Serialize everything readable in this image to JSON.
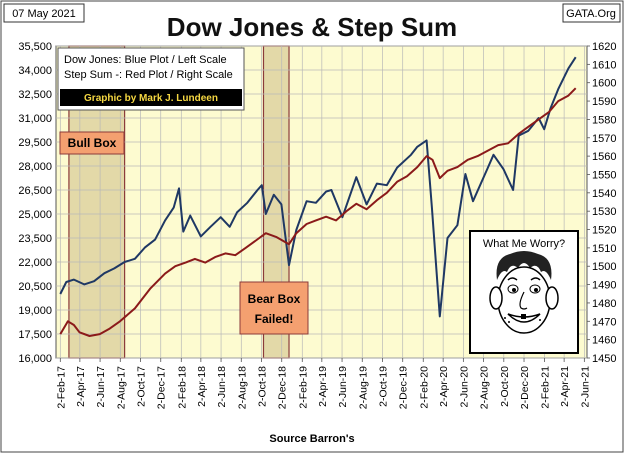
{
  "header": {
    "date": "07 May 2021",
    "title": "Dow Jones & Step Sum",
    "site": "GATA.Org"
  },
  "legend": {
    "line1": "Dow Jones: Blue Plot / Left Scale",
    "line2": "Step Sum -: Red Plot / Right Scale",
    "credit": "Graphic by Mark J. Lundeen"
  },
  "annotations": {
    "bull_box": "Bull Box",
    "bear_box_line1": "Bear Box",
    "bear_box_line2": "Failed!",
    "what_me_worry": "What Me Worry?"
  },
  "footer": {
    "source": "Source Barron's"
  },
  "colors": {
    "dow": "#1f3864",
    "stepsum": "#8b1a1a",
    "plot_bg": "#fdfbd0",
    "box_fill": "#e3d9a8",
    "box_border": "#8b3a3a",
    "label_fill": "#f4a070",
    "credit_bg": "#000000",
    "credit_text": "#f5d742"
  },
  "chart_data": {
    "type": "line",
    "x_ticks": [
      "2-Feb-17",
      "2-Apr-17",
      "2-Jun-17",
      "2-Aug-17",
      "2-Oct-17",
      "2-Dec-17",
      "2-Feb-18",
      "2-Apr-18",
      "2-Jun-18",
      "2-Aug-18",
      "2-Oct-18",
      "2-Dec-18",
      "2-Feb-19",
      "2-Apr-19",
      "2-Jun-19",
      "2-Aug-19",
      "2-Oct-19",
      "2-Dec-19",
      "2-Feb-20",
      "2-Apr-20",
      "2-Jun-20",
      "2-Aug-20",
      "2-Oct-20",
      "2-Dec-20",
      "2-Feb-21",
      "2-Apr-21",
      "2-Jun-21"
    ],
    "y_left": {
      "min": 16000,
      "max": 35500,
      "step": 1500,
      "ticks": [
        "16,000",
        "17,500",
        "19,000",
        "20,500",
        "22,000",
        "23,500",
        "25,000",
        "26,500",
        "28,000",
        "29,500",
        "31,000",
        "32,500",
        "34,000",
        "35,500"
      ]
    },
    "y_right": {
      "min": 1450,
      "max": 1620,
      "step": 10,
      "ticks": [
        "1450",
        "1460",
        "1470",
        "1480",
        "1490",
        "1500",
        "1510",
        "1520",
        "1530",
        "1540",
        "1550",
        "1560",
        "1570",
        "1580",
        "1590",
        "1600",
        "1610",
        "1620"
      ]
    },
    "shaded_regions": [
      {
        "label": "Bull Box",
        "start": "2017-02-28",
        "end": "2017-08-15"
      },
      {
        "label": "Bear Box",
        "start": "2018-10-08",
        "end": "2018-12-24"
      }
    ],
    "series": [
      {
        "name": "Dow Jones",
        "axis": "left",
        "color": "#1f3864",
        "points": [
          [
            "2017-02-02",
            20000
          ],
          [
            "2017-02-20",
            20750
          ],
          [
            "2017-03-15",
            20900
          ],
          [
            "2017-04-15",
            20600
          ],
          [
            "2017-05-15",
            20800
          ],
          [
            "2017-06-15",
            21300
          ],
          [
            "2017-07-15",
            21600
          ],
          [
            "2017-08-15",
            22000
          ],
          [
            "2017-09-15",
            22200
          ],
          [
            "2017-10-15",
            22900
          ],
          [
            "2017-11-15",
            23400
          ],
          [
            "2017-12-15",
            24600
          ],
          [
            "2018-01-10",
            25400
          ],
          [
            "2018-01-26",
            26600
          ],
          [
            "2018-02-08",
            23900
          ],
          [
            "2018-03-01",
            24900
          ],
          [
            "2018-04-02",
            23600
          ],
          [
            "2018-05-01",
            24200
          ],
          [
            "2018-06-01",
            24800
          ],
          [
            "2018-06-28",
            24200
          ],
          [
            "2018-07-20",
            25100
          ],
          [
            "2018-08-20",
            25700
          ],
          [
            "2018-09-20",
            26500
          ],
          [
            "2018-10-03",
            26800
          ],
          [
            "2018-10-15",
            25000
          ],
          [
            "2018-11-08",
            26200
          ],
          [
            "2018-12-01",
            25600
          ],
          [
            "2018-12-24",
            21800
          ],
          [
            "2019-01-15",
            24000
          ],
          [
            "2019-02-15",
            25800
          ],
          [
            "2019-03-15",
            25700
          ],
          [
            "2019-04-15",
            26400
          ],
          [
            "2019-05-01",
            26500
          ],
          [
            "2019-06-03",
            24800
          ],
          [
            "2019-07-15",
            27300
          ],
          [
            "2019-08-15",
            25600
          ],
          [
            "2019-09-15",
            26900
          ],
          [
            "2019-10-15",
            26800
          ],
          [
            "2019-11-15",
            27900
          ],
          [
            "2019-12-27",
            28700
          ],
          [
            "2020-01-15",
            29200
          ],
          [
            "2020-02-12",
            29600
          ],
          [
            "2020-02-28",
            25400
          ],
          [
            "2020-03-23",
            18600
          ],
          [
            "2020-04-15",
            23500
          ],
          [
            "2020-05-15",
            24300
          ],
          [
            "2020-06-08",
            27500
          ],
          [
            "2020-07-01",
            25800
          ],
          [
            "2020-08-15",
            27900
          ],
          [
            "2020-09-01",
            28700
          ],
          [
            "2020-10-01",
            27800
          ],
          [
            "2020-10-30",
            26500
          ],
          [
            "2020-11-16",
            29900
          ],
          [
            "2020-12-15",
            30200
          ],
          [
            "2021-01-15",
            31000
          ],
          [
            "2021-02-01",
            30300
          ],
          [
            "2021-02-20",
            31600
          ],
          [
            "2021-03-15",
            32800
          ],
          [
            "2021-04-15",
            34100
          ],
          [
            "2021-05-07",
            34800
          ]
        ]
      },
      {
        "name": "Step Sum",
        "axis": "right",
        "color": "#8b1a1a",
        "points": [
          [
            "2017-02-02",
            1463
          ],
          [
            "2017-02-25",
            1470
          ],
          [
            "2017-03-15",
            1468
          ],
          [
            "2017-04-01",
            1464
          ],
          [
            "2017-05-01",
            1462
          ],
          [
            "2017-06-01",
            1463
          ],
          [
            "2017-07-01",
            1466
          ],
          [
            "2017-08-01",
            1470
          ],
          [
            "2017-09-15",
            1477
          ],
          [
            "2017-11-01",
            1488
          ],
          [
            "2017-12-15",
            1496
          ],
          [
            "2018-01-15",
            1500
          ],
          [
            "2018-02-15",
            1502
          ],
          [
            "2018-03-15",
            1504
          ],
          [
            "2018-04-15",
            1502
          ],
          [
            "2018-05-15",
            1505
          ],
          [
            "2018-06-15",
            1507
          ],
          [
            "2018-07-15",
            1506
          ],
          [
            "2018-08-15",
            1510
          ],
          [
            "2018-09-15",
            1514
          ],
          [
            "2018-10-15",
            1518
          ],
          [
            "2018-11-15",
            1516
          ],
          [
            "2018-12-24",
            1512
          ],
          [
            "2019-01-15",
            1518
          ],
          [
            "2019-02-15",
            1523
          ],
          [
            "2019-03-15",
            1525
          ],
          [
            "2019-04-15",
            1527
          ],
          [
            "2019-05-15",
            1525
          ],
          [
            "2019-06-15",
            1530
          ],
          [
            "2019-07-15",
            1534
          ],
          [
            "2019-08-15",
            1531
          ],
          [
            "2019-09-15",
            1536
          ],
          [
            "2019-10-15",
            1540
          ],
          [
            "2019-11-15",
            1546
          ],
          [
            "2019-12-15",
            1549
          ],
          [
            "2020-01-15",
            1554
          ],
          [
            "2020-02-12",
            1560
          ],
          [
            "2020-03-01",
            1558
          ],
          [
            "2020-03-23",
            1548
          ],
          [
            "2020-04-15",
            1552
          ],
          [
            "2020-05-15",
            1554
          ],
          [
            "2020-06-15",
            1558
          ],
          [
            "2020-07-15",
            1560
          ],
          [
            "2020-08-15",
            1563
          ],
          [
            "2020-09-15",
            1566
          ],
          [
            "2020-10-15",
            1567
          ],
          [
            "2020-11-15",
            1572
          ],
          [
            "2020-12-15",
            1576
          ],
          [
            "2021-01-15",
            1580
          ],
          [
            "2021-02-15",
            1584
          ],
          [
            "2021-03-15",
            1590
          ],
          [
            "2021-04-15",
            1593
          ],
          [
            "2021-05-07",
            1597
          ]
        ]
      }
    ],
    "title": "Dow Jones & Step Sum",
    "xlabel": "Source Barron's",
    "grid": true
  }
}
